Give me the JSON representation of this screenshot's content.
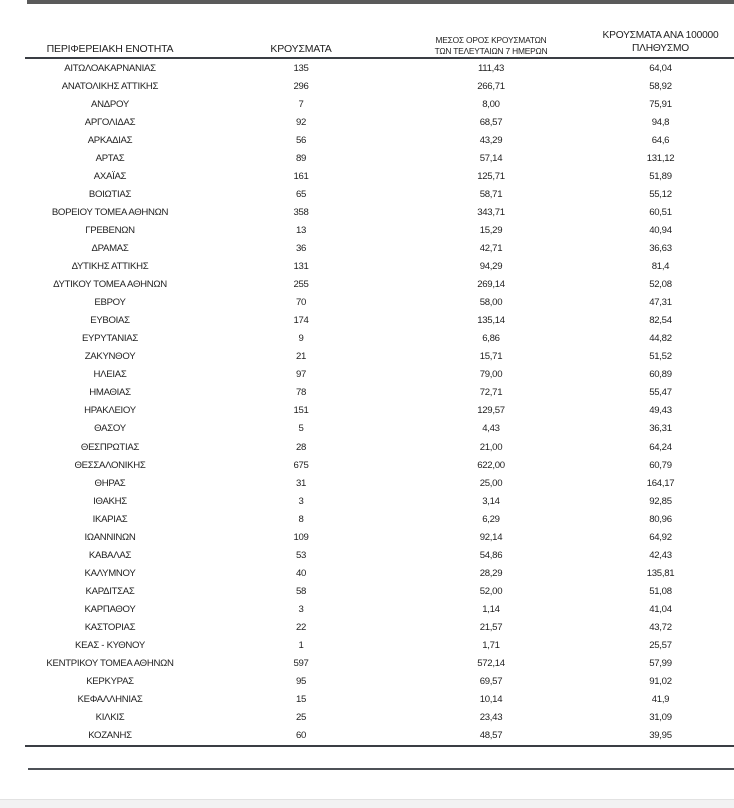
{
  "colors": {
    "top_bar": "#5a5a5a",
    "rule": "#3a3e44",
    "bottom_bar": "#f2f2f2",
    "text": "#1f1f1f"
  },
  "table": {
    "headers": {
      "region": "ΠΕΡΙΦΕΡΕΙΑΚΗ ΕΝΟΤΗΤΑ",
      "cases": "ΚΡΟΥΣΜΑΤΑ",
      "avg7_line1": "ΜΕΣΟΣ ΟΡΟΣ ΚΡΟΥΣΜΑΤΩΝ",
      "avg7_line2": "ΤΩΝ ΤΕΛΕΥΤΑΙΩΝ 7 ΗΜΕΡΩΝ",
      "per100k_line1": "ΚΡΟΥΣΜΑΤΑ ΑΝΑ 100000",
      "per100k_line2": "ΠΛΗΘΥΣΜΟ"
    },
    "rows": [
      {
        "region": "ΑΙΤΩΛΟΑΚΑΡΝΑΝΙΑΣ",
        "cases": "135",
        "avg7": "111,43",
        "per100k": "64,04"
      },
      {
        "region": "ΑΝΑΤΟΛΙΚΗΣ ΑΤΤΙΚΗΣ",
        "cases": "296",
        "avg7": "266,71",
        "per100k": "58,92"
      },
      {
        "region": "ΑΝΔΡΟΥ",
        "cases": "7",
        "avg7": "8,00",
        "per100k": "75,91"
      },
      {
        "region": "ΑΡΓΟΛΙΔΑΣ",
        "cases": "92",
        "avg7": "68,57",
        "per100k": "94,8"
      },
      {
        "region": "ΑΡΚΑΔΙΑΣ",
        "cases": "56",
        "avg7": "43,29",
        "per100k": "64,6"
      },
      {
        "region": "ΑΡΤΑΣ",
        "cases": "89",
        "avg7": "57,14",
        "per100k": "131,12"
      },
      {
        "region": "ΑΧΑΪΑΣ",
        "cases": "161",
        "avg7": "125,71",
        "per100k": "51,89"
      },
      {
        "region": "ΒΟΙΩΤΙΑΣ",
        "cases": "65",
        "avg7": "58,71",
        "per100k": "55,12"
      },
      {
        "region": "ΒΟΡΕΙΟΥ ΤΟΜΕΑ ΑΘΗΝΩΝ",
        "cases": "358",
        "avg7": "343,71",
        "per100k": "60,51"
      },
      {
        "region": "ΓΡΕΒΕΝΩΝ",
        "cases": "13",
        "avg7": "15,29",
        "per100k": "40,94"
      },
      {
        "region": "ΔΡΑΜΑΣ",
        "cases": "36",
        "avg7": "42,71",
        "per100k": "36,63"
      },
      {
        "region": "ΔΥΤΙΚΗΣ ΑΤΤΙΚΗΣ",
        "cases": "131",
        "avg7": "94,29",
        "per100k": "81,4"
      },
      {
        "region": "ΔΥΤΙΚΟΥ ΤΟΜΕΑ ΑΘΗΝΩΝ",
        "cases": "255",
        "avg7": "269,14",
        "per100k": "52,08"
      },
      {
        "region": "ΕΒΡΟΥ",
        "cases": "70",
        "avg7": "58,00",
        "per100k": "47,31"
      },
      {
        "region": "ΕΥΒΟΙΑΣ",
        "cases": "174",
        "avg7": "135,14",
        "per100k": "82,54"
      },
      {
        "region": "ΕΥΡΥΤΑΝΙΑΣ",
        "cases": "9",
        "avg7": "6,86",
        "per100k": "44,82"
      },
      {
        "region": "ΖΑΚΥΝΘΟΥ",
        "cases": "21",
        "avg7": "15,71",
        "per100k": "51,52"
      },
      {
        "region": "ΗΛΕΙΑΣ",
        "cases": "97",
        "avg7": "79,00",
        "per100k": "60,89"
      },
      {
        "region": "ΗΜΑΘΙΑΣ",
        "cases": "78",
        "avg7": "72,71",
        "per100k": "55,47"
      },
      {
        "region": "ΗΡΑΚΛΕΙΟΥ",
        "cases": "151",
        "avg7": "129,57",
        "per100k": "49,43"
      },
      {
        "region": "ΘΑΣΟΥ",
        "cases": "5",
        "avg7": "4,43",
        "per100k": "36,31"
      },
      {
        "region": "ΘΕΣΠΡΩΤΙΑΣ",
        "cases": "28",
        "avg7": "21,00",
        "per100k": "64,24"
      },
      {
        "region": "ΘΕΣΣΑΛΟΝΙΚΗΣ",
        "cases": "675",
        "avg7": "622,00",
        "per100k": "60,79"
      },
      {
        "region": "ΘΗΡΑΣ",
        "cases": "31",
        "avg7": "25,00",
        "per100k": "164,17"
      },
      {
        "region": "ΙΘΑΚΗΣ",
        "cases": "3",
        "avg7": "3,14",
        "per100k": "92,85"
      },
      {
        "region": "ΙΚΑΡΙΑΣ",
        "cases": "8",
        "avg7": "6,29",
        "per100k": "80,96"
      },
      {
        "region": "ΙΩΑΝΝΙΝΩΝ",
        "cases": "109",
        "avg7": "92,14",
        "per100k": "64,92"
      },
      {
        "region": "ΚΑΒΑΛΑΣ",
        "cases": "53",
        "avg7": "54,86",
        "per100k": "42,43"
      },
      {
        "region": "ΚΑΛΥΜΝΟΥ",
        "cases": "40",
        "avg7": "28,29",
        "per100k": "135,81"
      },
      {
        "region": "ΚΑΡΔΙΤΣΑΣ",
        "cases": "58",
        "avg7": "52,00",
        "per100k": "51,08"
      },
      {
        "region": "ΚΑΡΠΑΘΟΥ",
        "cases": "3",
        "avg7": "1,14",
        "per100k": "41,04"
      },
      {
        "region": "ΚΑΣΤΟΡΙΑΣ",
        "cases": "22",
        "avg7": "21,57",
        "per100k": "43,72"
      },
      {
        "region": "ΚΕΑΣ - ΚΥΘΝΟΥ",
        "cases": "1",
        "avg7": "1,71",
        "per100k": "25,57"
      },
      {
        "region": "ΚΕΝΤΡΙΚΟΥ ΤΟΜΕΑ ΑΘΗΝΩΝ",
        "cases": "597",
        "avg7": "572,14",
        "per100k": "57,99"
      },
      {
        "region": "ΚΕΡΚΥΡΑΣ",
        "cases": "95",
        "avg7": "69,57",
        "per100k": "91,02"
      },
      {
        "region": "ΚΕΦΑΛΛΗΝΙΑΣ",
        "cases": "15",
        "avg7": "10,14",
        "per100k": "41,9"
      },
      {
        "region": "ΚΙΛΚΙΣ",
        "cases": "25",
        "avg7": "23,43",
        "per100k": "31,09"
      },
      {
        "region": "ΚΟΖΑΝΗΣ",
        "cases": "60",
        "avg7": "48,57",
        "per100k": "39,95"
      }
    ]
  }
}
